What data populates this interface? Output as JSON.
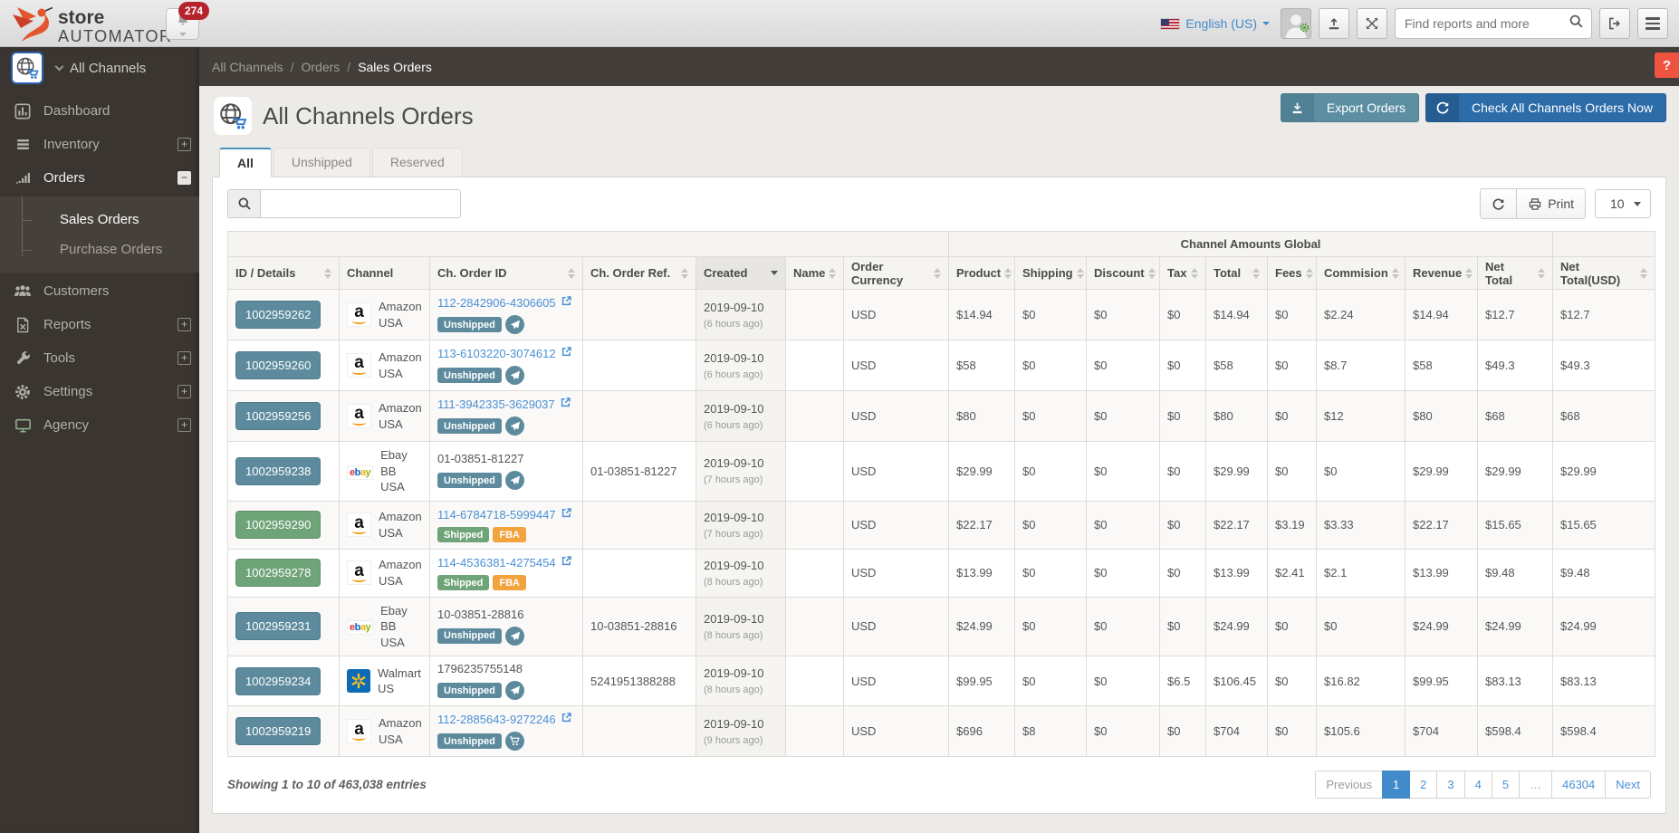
{
  "topbar": {
    "logo_line1": "store",
    "logo_line2": "AUTOMATOR",
    "notification_count": "274",
    "language": "English (US)",
    "search_placeholder": "Find reports and more"
  },
  "breadcrumb": {
    "items": [
      "All Channels",
      "Orders",
      "Sales Orders"
    ],
    "separator": "/"
  },
  "help_label": "?",
  "sidebar": {
    "header": "All Channels",
    "items": [
      {
        "label": "Dashboard",
        "icon": "dashboard-icon",
        "expand": null
      },
      {
        "label": "Inventory",
        "icon": "inventory-icon",
        "expand": "plus"
      },
      {
        "label": "Orders",
        "icon": "orders-icon",
        "expand": "minus",
        "open": true,
        "children": [
          {
            "label": "Sales Orders",
            "active": true
          },
          {
            "label": "Purchase Orders",
            "active": false
          }
        ]
      },
      {
        "label": "Customers",
        "icon": "customers-icon",
        "expand": null
      },
      {
        "label": "Reports",
        "icon": "reports-icon",
        "expand": "plus"
      },
      {
        "label": "Tools",
        "icon": "tools-icon",
        "expand": "plus"
      },
      {
        "label": "Settings",
        "icon": "settings-icon",
        "expand": "plus"
      },
      {
        "label": "Agency",
        "icon": "agency-icon",
        "expand": "plus"
      }
    ]
  },
  "page": {
    "title": "All Channels Orders",
    "export_button": "Export Orders",
    "check_button": "Check All Channels Orders Now",
    "tabs": [
      {
        "label": "All",
        "active": true
      },
      {
        "label": "Unshipped",
        "active": false
      },
      {
        "label": "Reserved",
        "active": false
      }
    ],
    "controls": {
      "print_label": "Print",
      "page_size": "10"
    }
  },
  "table": {
    "group_header": "Channel Amounts Global",
    "columns": [
      {
        "label": "ID / Details",
        "key": "id",
        "sortable": true
      },
      {
        "label": "Channel",
        "key": "channel",
        "sortable": false
      },
      {
        "label": "Ch. Order ID",
        "key": "order_id",
        "sortable": true
      },
      {
        "label": "Ch. Order Ref.",
        "key": "order_ref",
        "sortable": true
      },
      {
        "label": "Created",
        "key": "created",
        "sortable": true,
        "sorted": "desc"
      },
      {
        "label": "Name",
        "key": "name",
        "sortable": true
      },
      {
        "label": "Order Currency",
        "key": "currency",
        "sortable": true
      },
      {
        "label": "Product",
        "key": "product",
        "sortable": true
      },
      {
        "label": "Shipping",
        "key": "shipping",
        "sortable": true
      },
      {
        "label": "Discount",
        "key": "discount",
        "sortable": true
      },
      {
        "label": "Tax",
        "key": "tax",
        "sortable": true
      },
      {
        "label": "Total",
        "key": "total",
        "sortable": true
      },
      {
        "label": "Fees",
        "key": "fees",
        "sortable": true
      },
      {
        "label": "Commision",
        "key": "commision",
        "sortable": true
      },
      {
        "label": "Revenue",
        "key": "revenue",
        "sortable": true
      },
      {
        "label": "Net Total",
        "key": "net_total",
        "sortable": true
      },
      {
        "label": "Net Total(USD)",
        "key": "net_total_usd",
        "sortable": true
      }
    ],
    "rows": [
      {
        "id": "1002959262",
        "id_color": "teal",
        "channel_line1": "Amazon",
        "channel_line2": "USA",
        "channel_icon": "amazon-icon",
        "order_id": "112-2842906-4306605",
        "order_id_is_link": true,
        "status": "Unshipped",
        "status_color": "teal",
        "status_icon": "paper-plane-icon",
        "fba_label": null,
        "order_ref": "",
        "created": "2019-09-10",
        "created_ago": "(6 hours ago)",
        "name": "",
        "currency": "USD",
        "product": "$14.94",
        "shipping": "$0",
        "discount": "$0",
        "tax": "$0",
        "total": "$14.94",
        "fees": "$0",
        "commision": "$2.24",
        "revenue": "$14.94",
        "net_total": "$12.7",
        "net_total_usd": "$12.7"
      },
      {
        "id": "1002959260",
        "id_color": "teal",
        "channel_line1": "Amazon",
        "channel_line2": "USA",
        "channel_icon": "amazon-icon",
        "order_id": "113-6103220-3074612",
        "order_id_is_link": true,
        "status": "Unshipped",
        "status_color": "teal",
        "status_icon": "paper-plane-icon",
        "fba_label": null,
        "order_ref": "",
        "created": "2019-09-10",
        "created_ago": "(6 hours ago)",
        "name": "",
        "currency": "USD",
        "product": "$58",
        "shipping": "$0",
        "discount": "$0",
        "tax": "$0",
        "total": "$58",
        "fees": "$0",
        "commision": "$8.7",
        "revenue": "$58",
        "net_total": "$49.3",
        "net_total_usd": "$49.3"
      },
      {
        "id": "1002959256",
        "id_color": "teal",
        "channel_line1": "Amazon",
        "channel_line2": "USA",
        "channel_icon": "amazon-icon",
        "order_id": "111-3942335-3629037",
        "order_id_is_link": true,
        "status": "Unshipped",
        "status_color": "teal",
        "status_icon": "paper-plane-icon",
        "fba_label": null,
        "order_ref": "",
        "created": "2019-09-10",
        "created_ago": "(6 hours ago)",
        "name": "",
        "currency": "USD",
        "product": "$80",
        "shipping": "$0",
        "discount": "$0",
        "tax": "$0",
        "total": "$80",
        "fees": "$0",
        "commision": "$12",
        "revenue": "$80",
        "net_total": "$68",
        "net_total_usd": "$68"
      },
      {
        "id": "1002959238",
        "id_color": "teal",
        "channel_line1": "Ebay BB",
        "channel_line2": "USA",
        "channel_icon": "ebay-icon",
        "order_id": "01-03851-81227",
        "order_id_is_link": false,
        "status": "Unshipped",
        "status_color": "teal",
        "status_icon": "paper-plane-icon",
        "fba_label": null,
        "order_ref": "01-03851-81227",
        "created": "2019-09-10",
        "created_ago": "(7 hours ago)",
        "name": "",
        "currency": "USD",
        "product": "$29.99",
        "shipping": "$0",
        "discount": "$0",
        "tax": "$0",
        "total": "$29.99",
        "fees": "$0",
        "commision": "$0",
        "revenue": "$29.99",
        "net_total": "$29.99",
        "net_total_usd": "$29.99"
      },
      {
        "id": "1002959290",
        "id_color": "green",
        "channel_line1": "Amazon",
        "channel_line2": "USA",
        "channel_icon": "amazon-icon",
        "order_id": "114-6784718-5999447",
        "order_id_is_link": true,
        "status": "Shipped",
        "status_color": "green",
        "status_icon": null,
        "fba_label": "FBA",
        "order_ref": "",
        "created": "2019-09-10",
        "created_ago": "(7 hours ago)",
        "name": "",
        "currency": "USD",
        "product": "$22.17",
        "shipping": "$0",
        "discount": "$0",
        "tax": "$0",
        "total": "$22.17",
        "fees": "$3.19",
        "commision": "$3.33",
        "revenue": "$22.17",
        "net_total": "$15.65",
        "net_total_usd": "$15.65"
      },
      {
        "id": "1002959278",
        "id_color": "green",
        "channel_line1": "Amazon",
        "channel_line2": "USA",
        "channel_icon": "amazon-icon",
        "order_id": "114-4536381-4275454",
        "order_id_is_link": true,
        "status": "Shipped",
        "status_color": "green",
        "status_icon": null,
        "fba_label": "FBA",
        "order_ref": "",
        "created": "2019-09-10",
        "created_ago": "(8 hours ago)",
        "name": "",
        "currency": "USD",
        "product": "$13.99",
        "shipping": "$0",
        "discount": "$0",
        "tax": "$0",
        "total": "$13.99",
        "fees": "$2.41",
        "commision": "$2.1",
        "revenue": "$13.99",
        "net_total": "$9.48",
        "net_total_usd": "$9.48"
      },
      {
        "id": "1002959231",
        "id_color": "teal",
        "channel_line1": "Ebay BB",
        "channel_line2": "USA",
        "channel_icon": "ebay-icon",
        "order_id": "10-03851-28816",
        "order_id_is_link": false,
        "status": "Unshipped",
        "status_color": "teal",
        "status_icon": "paper-plane-icon",
        "fba_label": null,
        "order_ref": "10-03851-28816",
        "created": "2019-09-10",
        "created_ago": "(8 hours ago)",
        "name": "",
        "currency": "USD",
        "product": "$24.99",
        "shipping": "$0",
        "discount": "$0",
        "tax": "$0",
        "total": "$24.99",
        "fees": "$0",
        "commision": "$0",
        "revenue": "$24.99",
        "net_total": "$24.99",
        "net_total_usd": "$24.99"
      },
      {
        "id": "1002959234",
        "id_color": "teal",
        "channel_line1": "Walmart",
        "channel_line2": "US",
        "channel_icon": "walmart-icon",
        "order_id": "1796235755148",
        "order_id_is_link": false,
        "status": "Unshipped",
        "status_color": "teal",
        "status_icon": "paper-plane-icon",
        "fba_label": null,
        "order_ref": "5241951388288",
        "created": "2019-09-10",
        "created_ago": "(8 hours ago)",
        "name": "",
        "currency": "USD",
        "product": "$99.95",
        "shipping": "$0",
        "discount": "$0",
        "tax": "$6.5",
        "total": "$106.45",
        "fees": "$0",
        "commision": "$16.82",
        "revenue": "$99.95",
        "net_total": "$83.13",
        "net_total_usd": "$83.13"
      },
      {
        "id": "1002959219",
        "id_color": "teal",
        "channel_line1": "Amazon",
        "channel_line2": "USA",
        "channel_icon": "amazon-icon",
        "order_id": "112-2885643-9272246",
        "order_id_is_link": true,
        "status": "Unshipped",
        "status_color": "teal",
        "status_icon": "cart-icon",
        "fba_label": null,
        "order_ref": "",
        "created": "2019-09-10",
        "created_ago": "(9 hours ago)",
        "name": "",
        "currency": "USD",
        "product": "$696",
        "shipping": "$8",
        "discount": "$0",
        "tax": "$0",
        "total": "$704",
        "fees": "$0",
        "commision": "$105.6",
        "revenue": "$704",
        "net_total": "$598.4",
        "net_total_usd": "$598.4"
      }
    ]
  },
  "footer": {
    "showing": "Showing 1 to 10 of 463,038 entries",
    "pagination": [
      "Previous",
      "1",
      "2",
      "3",
      "4",
      "5",
      "…",
      "46304",
      "Next"
    ],
    "active_page": "1"
  },
  "colors": {
    "accent_blue": "#428bca",
    "button_blue": "#2c6ca8",
    "button_teal": "#5d8fa3",
    "badge_teal": "#5d8b9d",
    "badge_green": "#6fa378",
    "badge_orange": "#f3a33d",
    "help_red": "#f05340",
    "sidebar_dark": "#3a3531"
  }
}
